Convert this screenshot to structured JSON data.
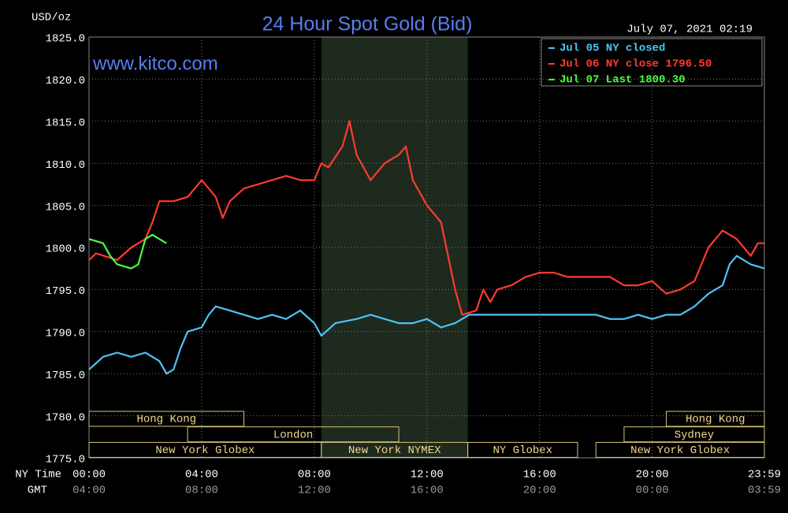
{
  "chart_data": {
    "type": "line",
    "title": "24 Hour Spot Gold (Bid)",
    "watermark": "www.kitco.com",
    "timestamp": "July 07, 2021 02:19",
    "y_label": "USD/oz",
    "x_label": "NY Time",
    "x2_label": "GMT",
    "xlim": [
      0,
      23.983
    ],
    "ylim": [
      1775,
      1825
    ],
    "xticks": [
      {
        "value": 0,
        "label": "00:00"
      },
      {
        "value": 4,
        "label": "04:00"
      },
      {
        "value": 8,
        "label": "08:00"
      },
      {
        "value": 12,
        "label": "12:00"
      },
      {
        "value": 16,
        "label": "16:00"
      },
      {
        "value": 20,
        "label": "20:00"
      },
      {
        "value": 23.983,
        "label": "23:59"
      }
    ],
    "x2ticks": [
      "04:00",
      "08:00",
      "12:00",
      "16:00",
      "20:00",
      "00:00",
      "03:59"
    ],
    "yticks": [
      {
        "value": 1775,
        "label": "1775.0"
      },
      {
        "value": 1780,
        "label": "1780.0"
      },
      {
        "value": 1785,
        "label": "1785.0"
      },
      {
        "value": 1790,
        "label": "1790.0"
      },
      {
        "value": 1795,
        "label": "1795.0"
      },
      {
        "value": 1800,
        "label": "1800.0"
      },
      {
        "value": 1805,
        "label": "1805.0"
      },
      {
        "value": 1810,
        "label": "1810.0"
      },
      {
        "value": 1815,
        "label": "1815.0"
      },
      {
        "value": 1820,
        "label": "1820.0"
      },
      {
        "value": 1825,
        "label": "1825.0"
      }
    ],
    "grid": true,
    "shaded": [
      8.25,
      13.45
    ],
    "session_rows": [
      [
        {
          "label": "Hong Kong",
          "start": 0,
          "end": 5.5
        },
        {
          "label": "Hong Kong",
          "start": 20.5,
          "end": 23.983
        }
      ],
      [
        {
          "label": "London",
          "start": 3.5,
          "end": 11
        },
        {
          "label": "Sydney",
          "start": 19,
          "end": 23.983
        }
      ],
      [
        {
          "label": "New York Globex",
          "start": 0,
          "end": 8.25
        },
        {
          "label": "New York NYMEX",
          "start": 8.25,
          "end": 13.45
        },
        {
          "label": "NY Globex",
          "start": 13.45,
          "end": 17.35
        },
        {
          "label": "New York Globex",
          "start": 18,
          "end": 23.983
        }
      ]
    ],
    "series": [
      {
        "name": "Jul 05 NY closed",
        "color": "#4fc3f7",
        "x": [
          0,
          0.5,
          1,
          1.5,
          2,
          2.5,
          2.75,
          3,
          3.25,
          3.5,
          4,
          4.25,
          4.5,
          5,
          5.5,
          6,
          6.5,
          7,
          7.5,
          8,
          8.25,
          8.75,
          9.5,
          10,
          10.5,
          11,
          11.5,
          12,
          12.5,
          13,
          13.5,
          18,
          18.5,
          19,
          19.5,
          20,
          20.5,
          21,
          21.5,
          22,
          22.5,
          22.75,
          23,
          23.5,
          23.983
        ],
        "values": [
          1785.5,
          1787.0,
          1787.5,
          1787.0,
          1787.5,
          1786.5,
          1785.0,
          1785.5,
          1788.0,
          1790.0,
          1790.5,
          1792.0,
          1793.0,
          1792.5,
          1792.0,
          1791.5,
          1792.0,
          1791.5,
          1792.5,
          1791.0,
          1789.5,
          1791.0,
          1791.5,
          1792.0,
          1791.5,
          1791.0,
          1791.0,
          1791.5,
          1790.5,
          1791.0,
          1792.0,
          1792.0,
          1791.5,
          1791.5,
          1792.0,
          1791.5,
          1792.0,
          1792.0,
          1793.0,
          1794.5,
          1795.5,
          1798.0,
          1799.0,
          1798.0,
          1797.5
        ]
      },
      {
        "name": "Jul 06 NY close 1796.50",
        "color": "#ff3b30",
        "x": [
          0,
          0.25,
          1,
          1.5,
          2,
          2.25,
          2.5,
          3,
          3.5,
          4,
          4.25,
          4.5,
          4.75,
          5,
          5.5,
          6,
          6.5,
          7,
          7.5,
          8,
          8.25,
          8.5,
          9,
          9.25,
          9.5,
          10,
          10.5,
          11,
          11.25,
          11.5,
          12,
          12.5,
          13,
          13.25,
          13.75,
          14,
          14.25,
          14.5,
          15,
          15.5,
          16,
          16.5,
          17,
          18,
          18.5,
          19,
          19.5,
          20,
          20.5,
          21,
          21.5,
          22,
          22.5,
          23,
          23.5,
          23.75,
          23.983
        ],
        "values": [
          1798.5,
          1799.3,
          1798.5,
          1800.0,
          1801.0,
          1803.0,
          1805.5,
          1805.5,
          1806.0,
          1808.0,
          1807.0,
          1806.0,
          1803.5,
          1805.5,
          1807.0,
          1807.5,
          1808.0,
          1808.5,
          1808.0,
          1808.0,
          1810.0,
          1809.5,
          1812.0,
          1815.0,
          1811.0,
          1808.0,
          1810.0,
          1811.0,
          1812.0,
          1808.0,
          1805.0,
          1803.0,
          1795.0,
          1792.0,
          1792.5,
          1795.0,
          1793.5,
          1795.0,
          1795.5,
          1796.5,
          1797.0,
          1797.0,
          1796.5,
          1796.5,
          1796.5,
          1795.5,
          1795.5,
          1796.0,
          1794.5,
          1795.0,
          1796.0,
          1800.0,
          1802.0,
          1801.0,
          1799.0,
          1800.5,
          1800.5
        ]
      },
      {
        "name": "Jul 07 Last 1800.30",
        "color": "#4cff3c",
        "x": [
          0,
          0.5,
          0.75,
          1,
          1.5,
          1.75,
          2,
          2.25,
          2.5,
          2.75
        ],
        "values": [
          1801.0,
          1800.5,
          1799.0,
          1798.0,
          1797.5,
          1798.0,
          1801.0,
          1801.5,
          1801.0,
          1800.5
        ]
      }
    ]
  }
}
